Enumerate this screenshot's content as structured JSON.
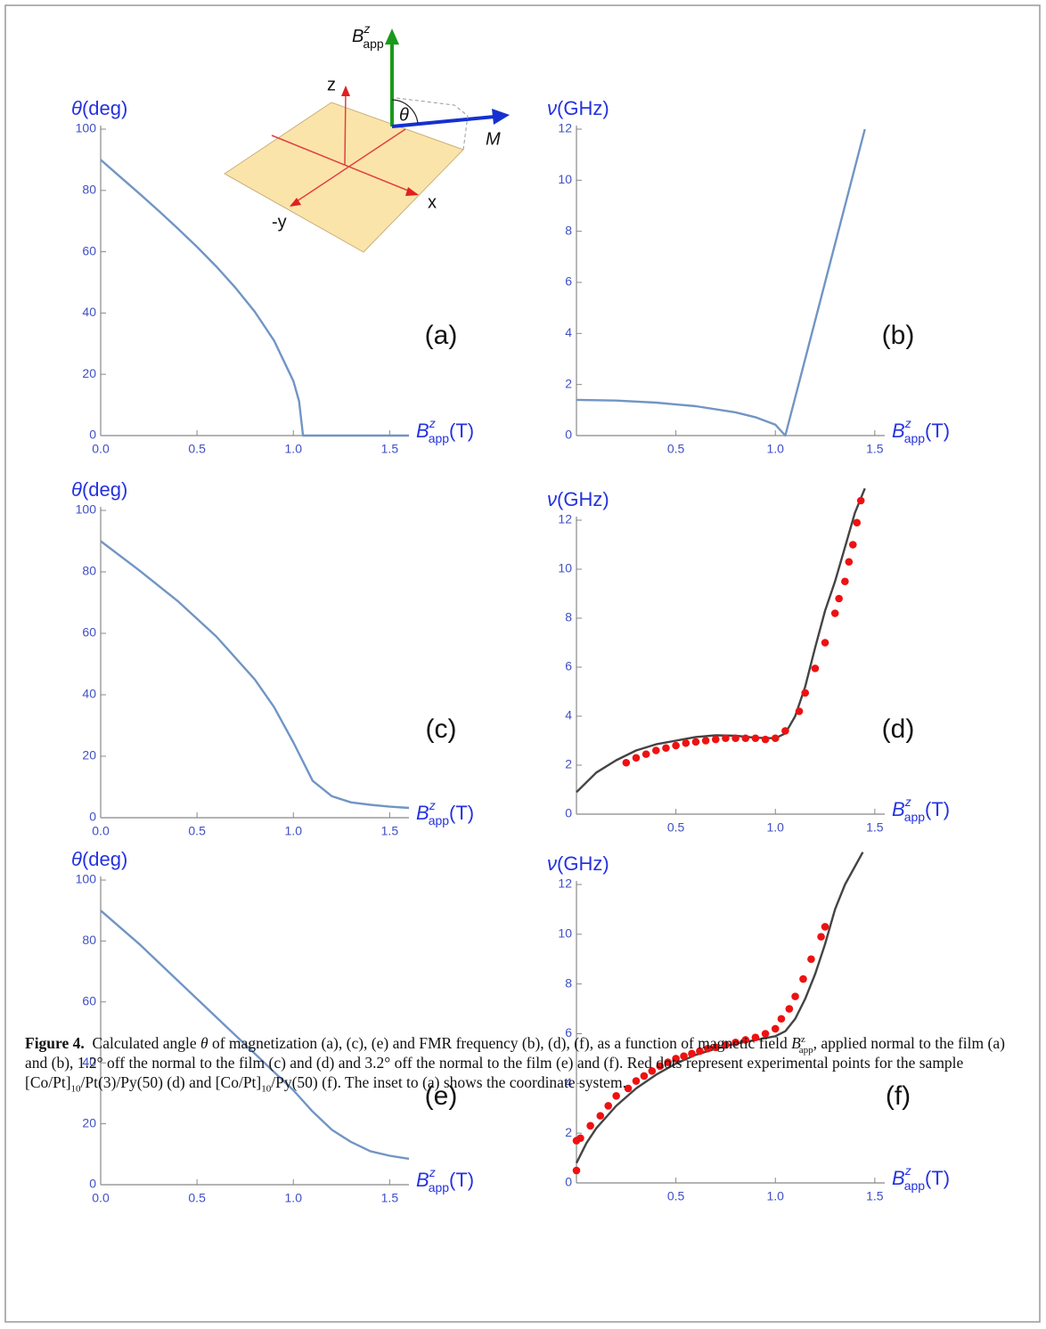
{
  "chart_data": [
    {
      "type": "line",
      "panel": "(a)",
      "y_label": {
        "symbol": "θ",
        "unit": "(deg)"
      },
      "x_label": {
        "symbol": "B",
        "sup": "z",
        "sub": "app",
        "unit": "(T)"
      },
      "xlim": [
        0,
        1.6
      ],
      "ylim": [
        0,
        100
      ],
      "xticks": [
        {
          "value": 0,
          "label": "0.0"
        },
        0.5,
        {
          "value": 1,
          "label": "1.0"
        },
        1.5
      ],
      "yticks": [
        0,
        20,
        40,
        60,
        80,
        100
      ],
      "series": [
        {
          "style": "line",
          "color": "#7195c4",
          "x": [
            0,
            0.1,
            0.2,
            0.3,
            0.4,
            0.5,
            0.6,
            0.7,
            0.8,
            0.9,
            1.0,
            1.03,
            1.05,
            1.2,
            1.4,
            1.6
          ],
          "values": [
            90,
            84.5,
            79,
            73.4,
            67.6,
            61.6,
            55.2,
            48.2,
            40.4,
            31,
            17.8,
            11.2,
            0,
            0,
            0,
            0
          ]
        }
      ]
    },
    {
      "type": "line",
      "panel": "(b)",
      "y_label": {
        "symbol": "ν",
        "unit": "(GHz)"
      },
      "x_label": {
        "symbol": "B",
        "sup": "z",
        "sub": "app",
        "unit": "(T)"
      },
      "xlim": [
        0,
        1.55
      ],
      "ylim": [
        0,
        12
      ],
      "xticks": [
        0.5,
        {
          "value": 1,
          "label": "1.0"
        },
        1.5
      ],
      "yticks": [
        0,
        2,
        4,
        6,
        8,
        10,
        12
      ],
      "series": [
        {
          "style": "line",
          "color": "#7195c4",
          "x": [
            0,
            0.2,
            0.4,
            0.6,
            0.8,
            0.9,
            1.0,
            1.05,
            1.45
          ],
          "values": [
            1.4,
            1.37,
            1.29,
            1.15,
            0.91,
            0.72,
            0.43,
            0,
            12
          ]
        }
      ]
    },
    {
      "type": "line",
      "panel": "(c)",
      "y_label": {
        "symbol": "θ",
        "unit": "(deg)"
      },
      "x_label": {
        "symbol": "B",
        "sup": "z",
        "sub": "app",
        "unit": "(T)"
      },
      "xlim": [
        0,
        1.6
      ],
      "ylim": [
        0,
        100
      ],
      "xticks": [
        {
          "value": 0,
          "label": "0.0"
        },
        0.5,
        {
          "value": 1,
          "label": "1.0"
        },
        1.5
      ],
      "yticks": [
        0,
        20,
        40,
        60,
        80,
        100
      ],
      "series": [
        {
          "style": "line",
          "color": "#7195c4",
          "x": [
            0,
            0.2,
            0.4,
            0.6,
            0.8,
            0.9,
            1.0,
            1.1,
            1.2,
            1.3,
            1.4,
            1.5,
            1.6
          ],
          "values": [
            90,
            80.5,
            70.5,
            59,
            45,
            36,
            24.5,
            12,
            7,
            5,
            4.2,
            3.6,
            3.2
          ]
        }
      ]
    },
    {
      "type": "line",
      "panel": "(d)",
      "y_label": {
        "symbol": "ν",
        "unit": "(GHz)"
      },
      "x_label": {
        "symbol": "B",
        "sup": "z",
        "sub": "app",
        "unit": "(T)"
      },
      "xlim": [
        0,
        1.55
      ],
      "ylim": [
        0,
        12
      ],
      "xticks": [
        0.5,
        {
          "value": 1,
          "label": "1.0"
        },
        1.5
      ],
      "yticks": [
        0,
        2,
        4,
        6,
        8,
        10,
        12
      ],
      "series": [
        {
          "style": "line",
          "color": "#444444",
          "x": [
            0,
            0.1,
            0.2,
            0.3,
            0.4,
            0.5,
            0.6,
            0.7,
            0.8,
            0.9,
            1.0,
            1.05,
            1.1,
            1.15,
            1.2,
            1.25,
            1.3,
            1.35,
            1.4,
            1.45
          ],
          "values": [
            0.9,
            1.7,
            2.2,
            2.6,
            2.85,
            3.0,
            3.15,
            3.22,
            3.2,
            3.12,
            3.1,
            3.3,
            4.0,
            5.2,
            6.8,
            8.3,
            9.5,
            10.9,
            12.3,
            13.3
          ]
        },
        {
          "style": "dots",
          "color": "#ee1111",
          "x": [
            0.25,
            0.3,
            0.35,
            0.4,
            0.45,
            0.5,
            0.55,
            0.6,
            0.65,
            0.7,
            0.75,
            0.8,
            0.85,
            0.9,
            0.95,
            1.0,
            1.05,
            1.12,
            1.15,
            1.2,
            1.25,
            1.3,
            1.32,
            1.35,
            1.37,
            1.39,
            1.41,
            1.43
          ],
          "values": [
            2.1,
            2.3,
            2.45,
            2.6,
            2.7,
            2.8,
            2.9,
            2.95,
            3.0,
            3.05,
            3.1,
            3.1,
            3.1,
            3.1,
            3.05,
            3.1,
            3.4,
            4.2,
            4.95,
            5.95,
            7.0,
            8.2,
            8.8,
            9.5,
            10.3,
            11.0,
            11.9,
            12.8
          ]
        }
      ]
    },
    {
      "type": "line",
      "panel": "(e)",
      "y_label": {
        "symbol": "θ",
        "unit": "(deg)"
      },
      "x_label": {
        "symbol": "B",
        "sup": "z",
        "sub": "app",
        "unit": "(T)"
      },
      "xlim": [
        0,
        1.6
      ],
      "ylim": [
        0,
        100
      ],
      "xticks": [
        {
          "value": 0,
          "label": "0.0"
        },
        0.5,
        {
          "value": 1,
          "label": "1.0"
        },
        1.5
      ],
      "yticks": [
        0,
        20,
        40,
        60,
        80,
        100
      ],
      "series": [
        {
          "style": "line",
          "color": "#7195c4",
          "x": [
            0,
            0.2,
            0.4,
            0.6,
            0.8,
            0.9,
            1.0,
            1.1,
            1.2,
            1.3,
            1.4,
            1.5,
            1.6
          ],
          "values": [
            90,
            79,
            67,
            55,
            43,
            37,
            31,
            24,
            18,
            14,
            11,
            9.5,
            8.5
          ]
        }
      ]
    },
    {
      "type": "line",
      "panel": "(f)",
      "y_label": {
        "symbol": "ν",
        "unit": "(GHz)"
      },
      "x_label": {
        "symbol": "B",
        "sup": "z",
        "sub": "app",
        "unit": "(T)"
      },
      "xlim": [
        0,
        1.55
      ],
      "ylim": [
        0,
        12
      ],
      "xticks": [
        0.5,
        {
          "value": 1,
          "label": "1.0"
        },
        1.5
      ],
      "yticks": [
        0,
        2,
        4,
        6,
        8,
        10,
        12
      ],
      "series": [
        {
          "style": "line",
          "color": "#444444",
          "x": [
            0,
            0.05,
            0.1,
            0.2,
            0.3,
            0.4,
            0.5,
            0.6,
            0.7,
            0.8,
            0.9,
            1.0,
            1.05,
            1.1,
            1.15,
            1.2,
            1.25,
            1.3,
            1.35,
            1.44
          ],
          "values": [
            0.8,
            1.6,
            2.2,
            3.1,
            3.8,
            4.35,
            4.8,
            5.15,
            5.4,
            5.6,
            5.75,
            5.9,
            6.1,
            6.6,
            7.4,
            8.4,
            9.6,
            11.0,
            12.0,
            13.3
          ]
        },
        {
          "style": "dots",
          "color": "#ee1111",
          "x": [
            0,
            0,
            0.02,
            0.07,
            0.12,
            0.16,
            0.2,
            0.26,
            0.3,
            0.34,
            0.38,
            0.42,
            0.46,
            0.5,
            0.54,
            0.58,
            0.62,
            0.66,
            0.7,
            0.75,
            0.8,
            0.85,
            0.9,
            0.95,
            1.0,
            1.03,
            1.07,
            1.1,
            1.14,
            1.18,
            1.23,
            1.25
          ],
          "values": [
            0.5,
            1.7,
            1.8,
            2.3,
            2.7,
            3.1,
            3.5,
            3.8,
            4.1,
            4.3,
            4.5,
            4.7,
            4.85,
            5.0,
            5.1,
            5.2,
            5.3,
            5.4,
            5.45,
            5.55,
            5.65,
            5.75,
            5.85,
            6.0,
            6.2,
            6.6,
            7.0,
            7.5,
            8.2,
            9.0,
            9.9,
            10.3
          ]
        }
      ]
    }
  ],
  "inset": {
    "b_symbol": "B",
    "b_sup": "z",
    "b_sub": "app",
    "z": "z",
    "x": "x",
    "minus_y": "-y",
    "theta": "θ",
    "m": "M"
  },
  "caption": {
    "label": "Figure 4.",
    "runs": [
      {
        "text": "  Calculated angle ",
        "style": "normal"
      },
      {
        "text": "θ",
        "style": "italic"
      },
      {
        "text": " of magnetization (a), (c), (e) and FMR frequency (b), (d), (f), as a function of magnetic field ",
        "style": "normal"
      },
      {
        "text": "B",
        "style": "italic"
      },
      {
        "text": "z",
        "style": "sup"
      },
      {
        "text": "app",
        "style": "sub"
      },
      {
        "text": ", applied normal to the film (a) and (b), 1.2° off the normal to the film (c) and (d) and 3.2° off the normal to the film (e) and (f). Red dots represent experimental points for the sample [Co/Pt]",
        "style": "normal"
      },
      {
        "text": "10",
        "style": "sub"
      },
      {
        "text": "/Pt(3)/Py(50) (d) and [Co/Pt]",
        "style": "normal"
      },
      {
        "text": "10",
        "style": "sub"
      },
      {
        "text": "/Py(50) (f). The inset to (a) shows the coordinate system.",
        "style": "normal"
      }
    ]
  }
}
